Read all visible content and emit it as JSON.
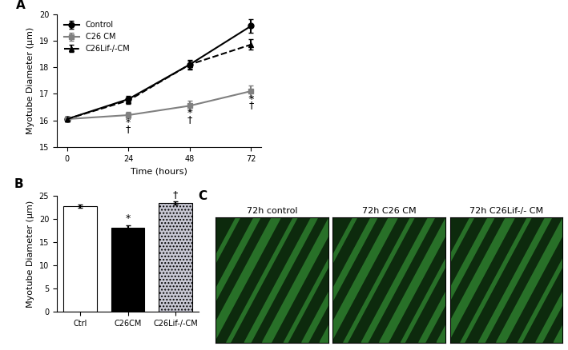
{
  "chart_data": [
    {
      "type": "line",
      "title": "A",
      "x_label": "Time (hours)",
      "y_label": "Myotube Diameter (μm)",
      "x": [
        0,
        24,
        48,
        72
      ],
      "xlim": [
        -4,
        76
      ],
      "xticks": [
        0,
        24,
        48,
        72
      ],
      "ylim": [
        15,
        20
      ],
      "yticks": [
        15,
        16,
        17,
        18,
        19,
        20
      ],
      "legend": "upper left",
      "series": [
        {
          "name": "Control",
          "color": "#000000",
          "marker": "o",
          "line_style": "solid",
          "values": [
            16.05,
            16.8,
            18.1,
            19.55
          ],
          "errors": [
            0.1,
            0.12,
            0.18,
            0.25
          ]
        },
        {
          "name": "C26 CM",
          "color": "#808080",
          "marker": "s",
          "line_style": "solid",
          "values": [
            16.05,
            16.2,
            16.55,
            17.1
          ],
          "errors": [
            0.1,
            0.12,
            0.18,
            0.2
          ]
        },
        {
          "name": "C26Lif-/-CM",
          "color": "#000000",
          "marker": "^",
          "line_style": "dashed",
          "values": [
            16.05,
            16.75,
            18.1,
            18.85
          ],
          "errors": [
            0.1,
            0.12,
            0.15,
            0.2
          ]
        }
      ],
      "annotations": [
        {
          "x": 24,
          "y": 15.92,
          "text": "*"
        },
        {
          "x": 24,
          "y": 15.68,
          "text": "†"
        },
        {
          "x": 48,
          "y": 16.27,
          "text": "*"
        },
        {
          "x": 48,
          "y": 16.03,
          "text": "†"
        },
        {
          "x": 72,
          "y": 16.8,
          "text": "*"
        },
        {
          "x": 72,
          "y": 16.56,
          "text": "†"
        }
      ]
    },
    {
      "type": "bar",
      "title": "B",
      "y_label": "Myotube Diameter (μm)",
      "categories": [
        "Ctrl",
        "C26CM",
        "C26Lif-/-CM"
      ],
      "values": [
        22.8,
        18.2,
        23.5
      ],
      "errors": [
        0.4,
        0.5,
        0.4
      ],
      "colors": [
        "#ffffff",
        "#000000",
        "#c8c8d4"
      ],
      "ylim": [
        0,
        25
      ],
      "yticks": [
        0,
        5,
        10,
        15,
        20,
        25
      ],
      "annotations": [
        {
          "x": 1,
          "y": 19.0,
          "text": "*"
        },
        {
          "x": 2,
          "y": 24.1,
          "text": "†"
        }
      ]
    },
    {
      "type": "image",
      "title": "C",
      "panels": [
        "72h control",
        "72h C26 CM",
        "72h C26Lif-/- CM"
      ]
    }
  ]
}
